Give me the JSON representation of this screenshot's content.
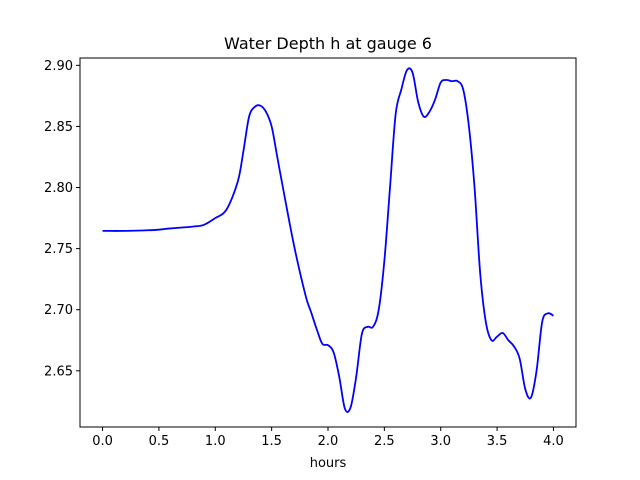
{
  "chart_data": {
    "type": "line",
    "title": "Water Depth h at gauge 6",
    "xlabel": "hours",
    "ylabel": "",
    "xlim": [
      -0.2,
      4.2
    ],
    "ylim": [
      2.604,
      2.906
    ],
    "xticks": [
      0.0,
      0.5,
      1.0,
      1.5,
      2.0,
      2.5,
      3.0,
      3.5,
      4.0
    ],
    "xtick_labels": [
      "0.0",
      "0.5",
      "1.0",
      "1.5",
      "2.0",
      "2.5",
      "3.0",
      "3.5",
      "4.0"
    ],
    "yticks": [
      2.65,
      2.7,
      2.75,
      2.8,
      2.85,
      2.9
    ],
    "ytick_labels": [
      "2.65",
      "2.70",
      "2.75",
      "2.80",
      "2.85",
      "2.90"
    ],
    "grid": false,
    "series": [
      {
        "color": "#0000ff",
        "x": [
          0.0,
          0.2,
          0.4,
          0.5,
          0.6,
          0.8,
          0.9,
          1.0,
          1.1,
          1.2,
          1.25,
          1.3,
          1.35,
          1.4,
          1.45,
          1.5,
          1.55,
          1.6,
          1.7,
          1.8,
          1.85,
          1.9,
          1.95,
          2.0,
          2.05,
          2.1,
          2.15,
          2.2,
          2.25,
          2.3,
          2.35,
          2.4,
          2.45,
          2.5,
          2.55,
          2.6,
          2.65,
          2.7,
          2.75,
          2.8,
          2.85,
          2.9,
          2.95,
          3.0,
          3.05,
          3.1,
          3.15,
          3.2,
          3.25,
          3.3,
          3.35,
          3.4,
          3.45,
          3.5,
          3.55,
          3.6,
          3.65,
          3.7,
          3.75,
          3.8,
          3.85,
          3.9,
          3.95,
          4.0
        ],
        "y": [
          2.7645,
          2.7645,
          2.765,
          2.7655,
          2.7665,
          2.768,
          2.7695,
          2.775,
          2.782,
          2.805,
          2.83,
          2.858,
          2.866,
          2.867,
          2.862,
          2.85,
          2.825,
          2.8,
          2.752,
          2.712,
          2.698,
          2.684,
          2.672,
          2.671,
          2.665,
          2.645,
          2.619,
          2.62,
          2.645,
          2.68,
          2.686,
          2.686,
          2.7,
          2.74,
          2.8,
          2.86,
          2.88,
          2.896,
          2.894,
          2.87,
          2.858,
          2.862,
          2.872,
          2.886,
          2.888,
          2.887,
          2.887,
          2.88,
          2.85,
          2.8,
          2.73,
          2.69,
          2.675,
          2.678,
          2.681,
          2.675,
          2.67,
          2.66,
          2.635,
          2.628,
          2.65,
          2.69,
          2.697,
          2.695
        ]
      }
    ]
  }
}
